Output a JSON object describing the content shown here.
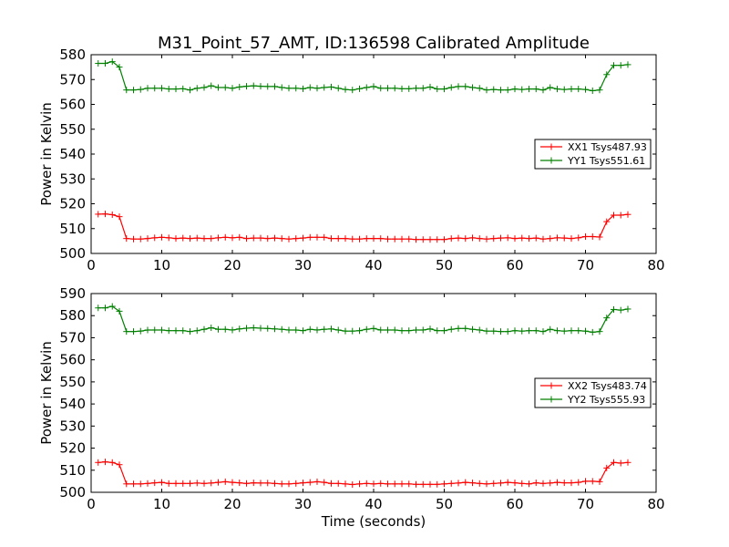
{
  "figure": {
    "title": "M31_Point_57_AMT, ID:136598 Calibrated Amplitude",
    "xlabel": "Time (seconds)"
  },
  "chart_data": [
    {
      "type": "line",
      "ylabel": "Power in Kelvin",
      "xlim": [
        0,
        80
      ],
      "ylim": [
        500,
        580
      ],
      "xticks": [
        "0",
        "10",
        "20",
        "30",
        "40",
        "50",
        "60",
        "70",
        "80"
      ],
      "yticks": [
        "500",
        "510",
        "520",
        "530",
        "540",
        "550",
        "560",
        "570",
        "580"
      ],
      "legend_position": "right",
      "series": [
        {
          "name": "XX1 Tsys487.93",
          "color": "#ff0000",
          "x": [
            1,
            2,
            3,
            4,
            5,
            6,
            7,
            8,
            9,
            10,
            11,
            12,
            13,
            14,
            15,
            16,
            17,
            18,
            19,
            20,
            21,
            22,
            23,
            24,
            25,
            26,
            27,
            28,
            29,
            30,
            31,
            32,
            33,
            34,
            35,
            36,
            37,
            38,
            39,
            40,
            41,
            42,
            43,
            44,
            45,
            46,
            47,
            48,
            49,
            50,
            51,
            52,
            53,
            54,
            55,
            56,
            57,
            58,
            59,
            60,
            61,
            62,
            63,
            64,
            65,
            66,
            67,
            68,
            69,
            70,
            71,
            72,
            73,
            74,
            75,
            76
          ],
          "y": [
            515.8,
            515.9,
            515.6,
            514.8,
            506.0,
            505.8,
            505.8,
            506.0,
            506.3,
            506.5,
            506.3,
            506.0,
            506.2,
            506.0,
            506.2,
            506.0,
            506.0,
            506.3,
            506.5,
            506.3,
            506.5,
            506.0,
            506.2,
            506.2,
            506.0,
            506.2,
            506.0,
            505.8,
            506.0,
            506.2,
            506.5,
            506.5,
            506.5,
            506.0,
            506.0,
            506.0,
            505.8,
            505.8,
            506.0,
            506.0,
            506.0,
            505.8,
            505.8,
            505.8,
            505.8,
            505.6,
            505.6,
            505.6,
            505.6,
            505.6,
            506.0,
            506.2,
            506.0,
            506.3,
            506.0,
            505.8,
            506.0,
            506.2,
            506.3,
            506.0,
            506.2,
            506.0,
            506.2,
            505.8,
            506.0,
            506.3,
            506.2,
            506.0,
            506.3,
            506.8,
            506.8,
            506.6,
            512.8,
            515.4,
            515.4,
            515.7
          ]
        },
        {
          "name": "YY1 Tsys551.61",
          "color": "#008000",
          "x": [
            1,
            2,
            3,
            4,
            5,
            6,
            7,
            8,
            9,
            10,
            11,
            12,
            13,
            14,
            15,
            16,
            17,
            18,
            19,
            20,
            21,
            22,
            23,
            24,
            25,
            26,
            27,
            28,
            29,
            30,
            31,
            32,
            33,
            34,
            35,
            36,
            37,
            38,
            39,
            40,
            41,
            42,
            43,
            44,
            45,
            46,
            47,
            48,
            49,
            50,
            51,
            52,
            53,
            54,
            55,
            56,
            57,
            58,
            59,
            60,
            61,
            62,
            63,
            64,
            65,
            66,
            67,
            68,
            69,
            70,
            71,
            72,
            73,
            74,
            75,
            76
          ],
          "y": [
            576.5,
            576.5,
            577.2,
            575.0,
            565.8,
            565.8,
            566.0,
            566.5,
            566.5,
            566.5,
            566.2,
            566.2,
            566.3,
            565.8,
            566.5,
            566.8,
            567.5,
            566.8,
            566.8,
            566.5,
            567.0,
            567.3,
            567.5,
            567.3,
            567.2,
            567.2,
            566.8,
            566.5,
            566.5,
            566.3,
            566.8,
            566.5,
            566.8,
            567.0,
            566.5,
            566.0,
            565.8,
            566.3,
            566.8,
            567.2,
            566.5,
            566.5,
            566.5,
            566.3,
            566.3,
            566.5,
            566.5,
            567.0,
            566.2,
            566.2,
            566.8,
            567.2,
            567.2,
            566.8,
            566.5,
            565.8,
            566.0,
            565.8,
            565.8,
            566.2,
            566.0,
            566.2,
            566.2,
            565.8,
            566.8,
            566.2,
            566.0,
            566.2,
            566.2,
            566.0,
            565.5,
            565.8,
            572.0,
            575.7,
            575.7,
            576.0
          ]
        }
      ]
    },
    {
      "type": "line",
      "ylabel": "Power in Kelvin",
      "xlim": [
        0,
        80
      ],
      "ylim": [
        500,
        590
      ],
      "xticks": [
        "0",
        "10",
        "20",
        "30",
        "40",
        "50",
        "60",
        "70",
        "80"
      ],
      "yticks": [
        "500",
        "510",
        "520",
        "530",
        "540",
        "550",
        "560",
        "570",
        "580",
        "590"
      ],
      "legend_position": "right",
      "series": [
        {
          "name": "XX2 Tsys483.74",
          "color": "#ff0000",
          "x": [
            1,
            2,
            3,
            4,
            5,
            6,
            7,
            8,
            9,
            10,
            11,
            12,
            13,
            14,
            15,
            16,
            17,
            18,
            19,
            20,
            21,
            22,
            23,
            24,
            25,
            26,
            27,
            28,
            29,
            30,
            31,
            32,
            33,
            34,
            35,
            36,
            37,
            38,
            39,
            40,
            41,
            42,
            43,
            44,
            45,
            46,
            47,
            48,
            49,
            50,
            51,
            52,
            53,
            54,
            55,
            56,
            57,
            58,
            59,
            60,
            61,
            62,
            63,
            64,
            65,
            66,
            67,
            68,
            69,
            70,
            71,
            72,
            73,
            74,
            75,
            76
          ],
          "y": [
            513.5,
            513.8,
            513.5,
            512.5,
            503.8,
            503.8,
            503.8,
            504.0,
            504.3,
            504.5,
            504.0,
            504.0,
            504.0,
            504.0,
            504.2,
            504.0,
            504.2,
            504.5,
            504.8,
            504.5,
            504.3,
            504.0,
            504.3,
            504.2,
            504.2,
            504.0,
            503.8,
            503.8,
            504.0,
            504.3,
            504.5,
            504.8,
            504.5,
            504.0,
            504.0,
            503.8,
            503.5,
            503.8,
            504.0,
            503.8,
            504.0,
            503.8,
            503.8,
            503.8,
            503.8,
            503.6,
            503.6,
            503.6,
            503.6,
            503.8,
            504.0,
            504.2,
            504.5,
            504.3,
            504.0,
            503.8,
            504.0,
            504.2,
            504.5,
            504.3,
            504.0,
            503.8,
            504.3,
            504.0,
            504.2,
            504.5,
            504.3,
            504.3,
            504.5,
            505.0,
            505.0,
            504.8,
            511.0,
            513.5,
            513.2,
            513.5
          ]
        },
        {
          "name": "YY2 Tsys555.93",
          "color": "#008000",
          "x": [
            1,
            2,
            3,
            4,
            5,
            6,
            7,
            8,
            9,
            10,
            11,
            12,
            13,
            14,
            15,
            16,
            17,
            18,
            19,
            20,
            21,
            22,
            23,
            24,
            25,
            26,
            27,
            28,
            29,
            30,
            31,
            32,
            33,
            34,
            35,
            36,
            37,
            38,
            39,
            40,
            41,
            42,
            43,
            44,
            45,
            46,
            47,
            48,
            49,
            50,
            51,
            52,
            53,
            54,
            55,
            56,
            57,
            58,
            59,
            60,
            61,
            62,
            63,
            64,
            65,
            66,
            67,
            68,
            69,
            70,
            71,
            72,
            73,
            74,
            75,
            76
          ],
          "y": [
            583.5,
            583.5,
            584.2,
            582.0,
            572.8,
            572.8,
            573.0,
            573.5,
            573.5,
            573.5,
            573.2,
            573.2,
            573.2,
            572.8,
            573.2,
            573.8,
            574.5,
            573.8,
            573.8,
            573.5,
            574.0,
            574.3,
            574.5,
            574.3,
            574.2,
            574.0,
            573.8,
            573.5,
            573.5,
            573.2,
            573.8,
            573.5,
            573.8,
            574.0,
            573.5,
            573.0,
            573.0,
            573.2,
            573.8,
            574.2,
            573.5,
            573.5,
            573.5,
            573.2,
            573.2,
            573.5,
            573.5,
            574.0,
            573.2,
            573.2,
            573.8,
            574.2,
            574.2,
            573.8,
            573.5,
            573.0,
            573.0,
            572.8,
            572.8,
            573.2,
            573.0,
            573.2,
            573.2,
            572.8,
            573.8,
            573.2,
            573.0,
            573.2,
            573.2,
            573.0,
            572.5,
            572.8,
            579.0,
            582.8,
            582.5,
            583.0
          ]
        }
      ]
    }
  ]
}
